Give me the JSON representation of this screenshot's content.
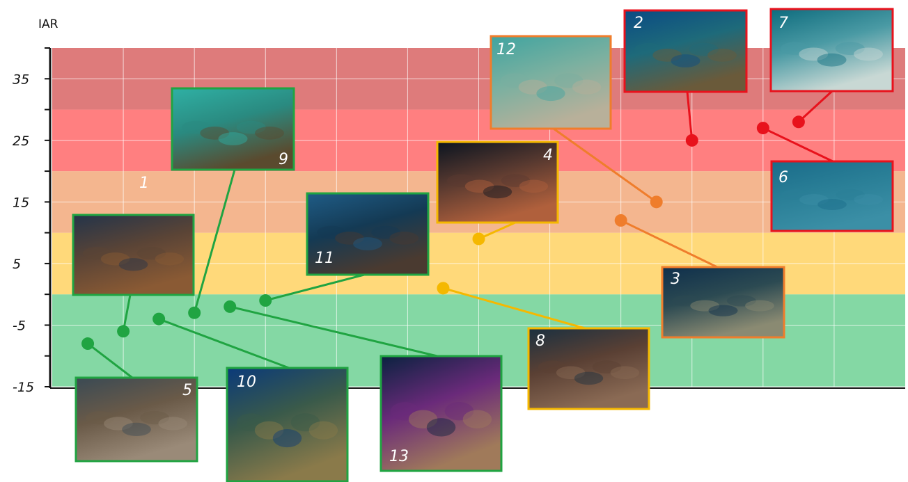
{
  "chart_data": {
    "type": "scatter",
    "title": "",
    "ylabel": "IAR",
    "xlabel": "",
    "ylim": [
      -15,
      40
    ],
    "yticks": [
      "35",
      "25",
      "15",
      "5",
      "-5",
      "-15"
    ],
    "ytick_values": [
      35,
      25,
      15,
      5,
      -5,
      -15
    ],
    "grid": true,
    "bands": [
      {
        "from": -15,
        "to": 0,
        "color": "#84d8a4"
      },
      {
        "from": 0,
        "to": 10,
        "color": "#ffd97a"
      },
      {
        "from": 10,
        "to": 20,
        "color": "#f4b68f"
      },
      {
        "from": 20,
        "to": 30,
        "color": "#ff7f80"
      },
      {
        "from": 30,
        "to": 40,
        "color": "#de7b7b"
      }
    ],
    "category_colors": {
      "green": "#20a442",
      "yellow": "#f5b800",
      "orange": "#ef7d2c",
      "red": "#e8121c"
    },
    "points": [
      {
        "label": "1",
        "x": 1,
        "y": -6,
        "category": "green"
      },
      {
        "label": "2",
        "x": 9,
        "y": 25,
        "category": "red"
      },
      {
        "label": "3",
        "x": 8,
        "y": 12,
        "category": "orange"
      },
      {
        "label": "4",
        "x": 6,
        "y": 9,
        "category": "yellow"
      },
      {
        "label": "5",
        "x": 0.5,
        "y": -8,
        "category": "green"
      },
      {
        "label": "6",
        "x": 10,
        "y": 27,
        "category": "red"
      },
      {
        "label": "7",
        "x": 10.5,
        "y": 28,
        "category": "red"
      },
      {
        "label": "8",
        "x": 5.5,
        "y": 1,
        "category": "yellow"
      },
      {
        "label": "9",
        "x": 2,
        "y": -3,
        "category": "green"
      },
      {
        "label": "10",
        "x": 1.5,
        "y": -4,
        "category": "green"
      },
      {
        "label": "11",
        "x": 3,
        "y": -1,
        "category": "green"
      },
      {
        "label": "12",
        "x": 8.5,
        "y": 15,
        "category": "orange"
      },
      {
        "label": "13",
        "x": 2.5,
        "y": -2,
        "category": "green"
      }
    ],
    "photos": [
      {
        "label": "1",
        "description": "wreck frame with fans",
        "palette": [
          "#23344a",
          "#5a4436",
          "#8a5a34"
        ]
      },
      {
        "label": "2",
        "description": "net on reef",
        "palette": [
          "#0a4b84",
          "#1e6a7a",
          "#6a5a3a"
        ]
      },
      {
        "label": "3",
        "description": "hanging net",
        "palette": [
          "#0e2f4c",
          "#2c4a52",
          "#8a8a72"
        ]
      },
      {
        "label": "4",
        "description": "encrusted boulder",
        "palette": [
          "#0a1420",
          "#5a3a30",
          "#b0603c"
        ]
      },
      {
        "label": "5",
        "description": "net on rocky seabed",
        "palette": [
          "#3a4a54",
          "#6a5a48",
          "#9a8a78"
        ]
      },
      {
        "label": "6",
        "description": "seagrass slope",
        "palette": [
          "#1a6c8a",
          "#2a7f97",
          "#3b8fa6"
        ]
      },
      {
        "label": "7",
        "description": "net over sand",
        "palette": [
          "#0e6c7e",
          "#4a9aa4",
          "#c8d8d4"
        ]
      },
      {
        "label": "8",
        "description": "net over rock",
        "palette": [
          "#1a3040",
          "#5a4034",
          "#8a6a54"
        ]
      },
      {
        "label": "9",
        "description": "lobster trap",
        "palette": [
          "#2fb0a4",
          "#2a8a80",
          "#5a4a2e"
        ]
      },
      {
        "label": "10",
        "description": "wreck wall",
        "palette": [
          "#0a3a7a",
          "#3a5a4a",
          "#8a7a4a"
        ]
      },
      {
        "label": "11",
        "description": "encrusted hull",
        "palette": [
          "#1f5c86",
          "#143a54",
          "#4a3a30"
        ]
      },
      {
        "label": "12",
        "description": "wire cage",
        "palette": [
          "#3fa4a0",
          "#7ab0a0",
          "#b8b09a"
        ]
      },
      {
        "label": "13",
        "description": "purple fan on wreck",
        "palette": [
          "#0a2240",
          "#6a2a7a",
          "#a07a5a"
        ]
      }
    ]
  }
}
